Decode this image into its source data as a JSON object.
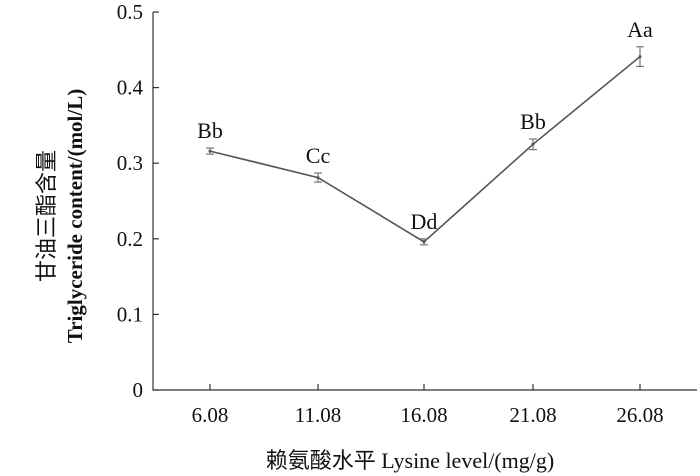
{
  "chart_data": {
    "type": "line",
    "categories": [
      "6.08",
      "11.08",
      "16.08",
      "21.08",
      "26.08"
    ],
    "series": [
      {
        "values": [
          0.316,
          0.281,
          0.196,
          0.325,
          0.441
        ],
        "errors": [
          0.004,
          0.006,
          0.004,
          0.007,
          0.013
        ],
        "labels": [
          "Bb",
          "Cc",
          "Dd",
          "Bb",
          "Aa"
        ]
      }
    ],
    "xlabel": "赖氨酸水平  Lysine level/(mg/g)",
    "ylabel_cn": "甘油三酯含量",
    "ylabel_en": "Triglyceride content/(mol/L)",
    "ylim": [
      0,
      0.5
    ],
    "yticks": [
      "0",
      "0.1",
      "0.2",
      "0.3",
      "0.4",
      "0.5"
    ],
    "grid": false
  }
}
